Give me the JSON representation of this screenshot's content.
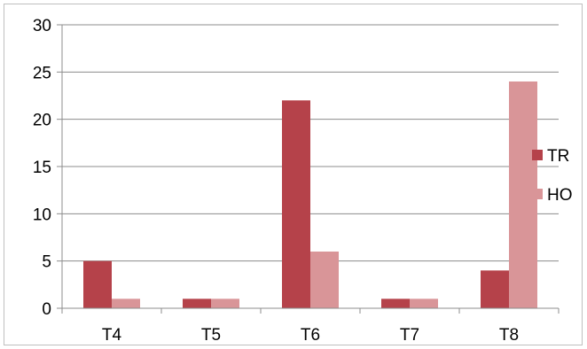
{
  "chart_data": {
    "type": "bar",
    "title": "",
    "xlabel": "",
    "ylabel": "",
    "categories": [
      "T4",
      "T5",
      "T6",
      "T7",
      "T8"
    ],
    "series": [
      {
        "name": "TR",
        "values": [
          5,
          1,
          22,
          1,
          4
        ],
        "color": "#b5424a"
      },
      {
        "name": "HO",
        "values": [
          1,
          1,
          6,
          1,
          24
        ],
        "color": "#d99598"
      }
    ],
    "ylim": [
      0,
      30
    ],
    "yticks": [
      "0",
      "5",
      "10",
      "15",
      "20",
      "25",
      "30"
    ],
    "grid": true,
    "legend": "right",
    "colors": {
      "gridline": "#8c8c8c",
      "axis": "#8c8c8c"
    }
  }
}
